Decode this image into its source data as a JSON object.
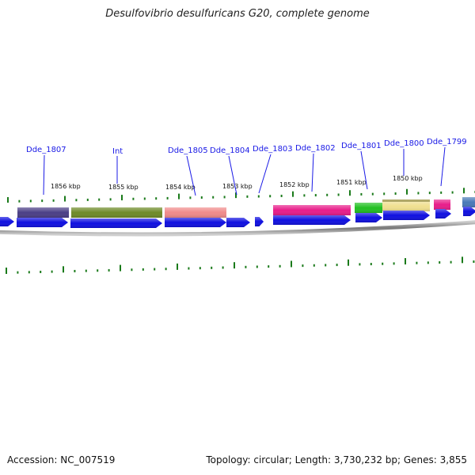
{
  "title": "Desulfovibrio desulfuricans G20, complete genome",
  "footer": {
    "accession": "Accession: NC_007519",
    "topology": "Topology: circular; Length: 3,730,232 bp; Genes: 3,855"
  },
  "kbp_labels": [
    "1856 kbp",
    "1855 kbp",
    "1854 kbp",
    "1853 kbp",
    "1852 kbp",
    "1851 kbp",
    "1850 kbp"
  ],
  "genes": [
    {
      "label": "Dde_1807",
      "color": "#4b3f86"
    },
    {
      "label": "Int",
      "color": "#6e8a28"
    },
    {
      "label": "Dde_1805",
      "color": "#f08a8a"
    },
    {
      "label": "Dde_1804",
      "color": ""
    },
    {
      "label": "Dde_1803",
      "color": ""
    },
    {
      "label": "Dde_1802",
      "color": "#e81d8a"
    },
    {
      "label": "Dde_1801",
      "color": "#22c022"
    },
    {
      "label": "Dde_1800",
      "color": "#f0e090"
    },
    {
      "label": "Dde_1799",
      "color": "#e81d8a"
    }
  ],
  "colors": {
    "cds_arrow": "#1010e0",
    "tick": "#1a7a1a",
    "backbone": "#888888",
    "extra_block": "#4a7ab8",
    "olive_block": "#b0a868"
  }
}
